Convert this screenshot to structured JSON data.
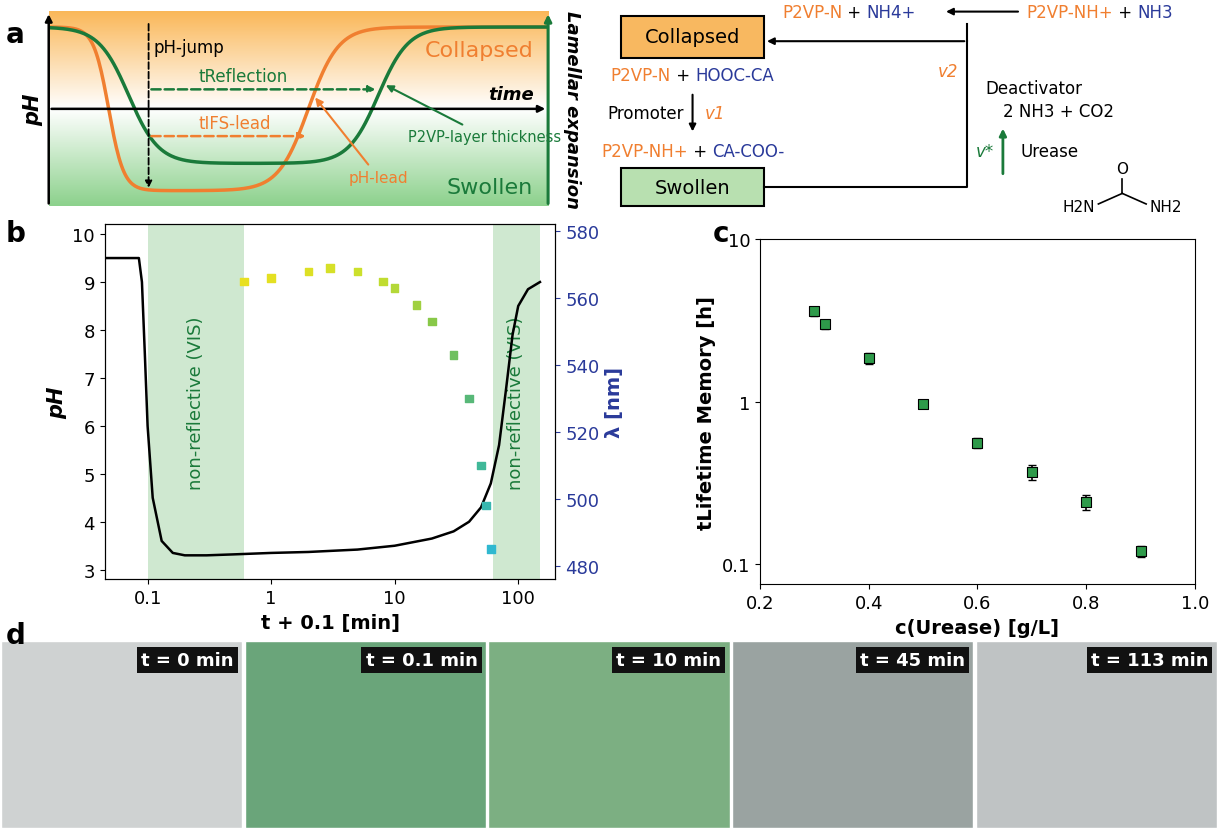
{
  "panel_labels": [
    "a",
    "b",
    "c",
    "d"
  ],
  "schematic": {
    "y_label": "pH",
    "x_label": "time",
    "right_label": "Lamellar expansion",
    "collapsed": "Collapsed",
    "swollen": "Swollen",
    "ph_jump": "pH-jump",
    "t_reflection": "tReflection",
    "t_ifs_lead": "tIFS-lead",
    "thickness": "P2VP-layer thickness",
    "ph_lead": "pH-lead"
  },
  "reaction_scheme": {
    "collapsed": "Collapsed",
    "swollen": "Swollen",
    "top_product": [
      [
        "P2VP-N",
        "#f07f30"
      ],
      [
        " + ",
        "#000000"
      ],
      [
        "NH4+",
        "#2a3a9a"
      ]
    ],
    "top_reactant": [
      [
        "P2VP-NH+",
        "#f07f30"
      ],
      [
        " + ",
        "#000000"
      ],
      [
        "NH3",
        "#2a3a9a"
      ]
    ],
    "promoter_reactants": [
      [
        "P2VP-N",
        "#f07f30"
      ],
      [
        " + ",
        "#000000"
      ],
      [
        "HOOC-CA",
        "#2a3a9a"
      ]
    ],
    "promoter_products": [
      [
        "P2VP-NH+",
        "#f07f30"
      ],
      [
        " + ",
        "#000000"
      ],
      [
        "CA-COO-",
        "#2a3a9a"
      ]
    ],
    "promoter": "Promoter",
    "v1": "v1",
    "deactivator": "Deactivator",
    "v2": "v2",
    "deactivator_products": "2 NH3 + CO2",
    "v_star": "v*",
    "enzyme": "Urease",
    "urea": {
      "top": "O",
      "left": "H2N",
      "right": "NH2"
    }
  },
  "chart_data": [
    {
      "type": "line",
      "x_label": "t + 0.1 [min]",
      "y_label": "pH",
      "y2_label": "λ [nm]",
      "log": "x",
      "xlim": [
        0.045,
        200
      ],
      "xticks": [
        0.1,
        1,
        10,
        100
      ],
      "ylim": [
        2.8,
        10.2
      ],
      "yticks": [
        3,
        4,
        5,
        6,
        7,
        8,
        9,
        10
      ],
      "y2lim": [
        476,
        582
      ],
      "y2ticks": [
        480,
        500,
        520,
        540,
        560,
        580
      ],
      "shaded_regions": [
        {
          "x": [
            0.1,
            0.6
          ],
          "label": "non-reflective (VIS)",
          "color": "#cfe8d0"
        },
        {
          "x": [
            62,
            150
          ],
          "label": "non-reflective (VIS)",
          "color": "#cfe8d0"
        }
      ],
      "series": [
        {
          "type": "line",
          "color": "#000000",
          "x": [
            0.045,
            0.085,
            0.09,
            0.095,
            0.1,
            0.11,
            0.13,
            0.16,
            0.2,
            0.3,
            0.5,
            1,
            2,
            5,
            10,
            20,
            30,
            40,
            50,
            60,
            70,
            80,
            90,
            100,
            120,
            150
          ],
          "values": [
            9.5,
            9.5,
            9.0,
            7.5,
            6.0,
            4.5,
            3.6,
            3.35,
            3.3,
            3.3,
            3.32,
            3.35,
            3.37,
            3.42,
            3.5,
            3.65,
            3.8,
            4.0,
            4.3,
            4.8,
            5.6,
            6.8,
            7.9,
            8.5,
            8.85,
            9.0
          ]
        },
        {
          "type": "scatter",
          "axis": "y2",
          "marker": "s",
          "x": [
            0.6,
            1,
            2,
            3,
            5,
            8,
            10,
            15,
            20,
            30,
            40,
            50,
            55,
            60
          ],
          "values": [
            565,
            566,
            568,
            569,
            568,
            565,
            563,
            558,
            553,
            543,
            530,
            510,
            498,
            485
          ],
          "colors": [
            "#e8e020",
            "#e4e022",
            "#dde025",
            "#d6e028",
            "#cce02c",
            "#c0dc30",
            "#b4d838",
            "#a0d040",
            "#88c848",
            "#70c060",
            "#58b878",
            "#40b898",
            "#38b8b0",
            "#30b8d0"
          ]
        }
      ]
    },
    {
      "type": "scatter",
      "x_label": "c(Urease) [g/L]",
      "y_label": "tLifetime Memory [h]",
      "log": "y",
      "xlim": [
        0.2,
        1.0
      ],
      "xticks": [
        0.2,
        0.4,
        0.6,
        0.8,
        1.0
      ],
      "ylim": [
        0.075,
        10
      ],
      "yticks": [
        0.1,
        1,
        10
      ],
      "color": "#2e9a4a",
      "marker": "s",
      "x": [
        0.3,
        0.32,
        0.4,
        0.5,
        0.6,
        0.7,
        0.8,
        0.9
      ],
      "values": [
        3.6,
        3.0,
        1.85,
        0.97,
        0.56,
        0.37,
        0.24,
        0.12
      ],
      "errors": [
        0.25,
        0.2,
        0.15,
        0.06,
        0.04,
        0.04,
        0.025,
        0.01
      ]
    }
  ],
  "photos": {
    "labels": [
      "t = 0 min",
      "t = 0.1 min",
      "t = 10 min",
      "t = 45 min",
      "t = 113 min"
    ]
  }
}
